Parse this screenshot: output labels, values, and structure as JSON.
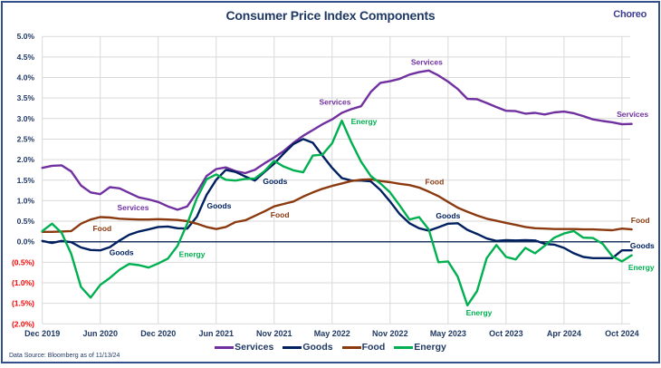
{
  "brand": {
    "logo_text": "Choreo"
  },
  "footer": {
    "source": "Data Source: Bloomberg as of 11/13/24"
  },
  "colors": {
    "title": "#1f3864",
    "positive_tick": "#1f3864",
    "negative_tick": "#ff0000",
    "zero_line": "#1f3864",
    "grid": "#d9d9d9"
  },
  "chart_data": {
    "type": "line",
    "title": "Consumer Price  Index Components",
    "xlabel": "",
    "ylabel": "",
    "ylim": [
      -2.0,
      5.0
    ],
    "grid": true,
    "legend_position": "bottom",
    "y_ticks": [
      {
        "value": 5.0,
        "label": "5.0%"
      },
      {
        "value": 4.5,
        "label": "4.5%"
      },
      {
        "value": 4.0,
        "label": "4.0%"
      },
      {
        "value": 3.5,
        "label": "3.5%"
      },
      {
        "value": 3.0,
        "label": "3.0%"
      },
      {
        "value": 2.5,
        "label": "2.5%"
      },
      {
        "value": 2.0,
        "label": "2.0%"
      },
      {
        "value": 1.5,
        "label": "1.5%"
      },
      {
        "value": 1.0,
        "label": "1.0%"
      },
      {
        "value": 0.5,
        "label": "0.5%"
      },
      {
        "value": 0.0,
        "label": "0.0%"
      },
      {
        "value": -0.5,
        "label": "(0.5%)"
      },
      {
        "value": -1.0,
        "label": "(1.0%)"
      },
      {
        "value": -1.5,
        "label": "(1.5%)"
      },
      {
        "value": -2.0,
        "label": "(2.0%)"
      }
    ],
    "x_ticks": [
      {
        "index": 0,
        "label": "Dec 2019"
      },
      {
        "index": 6,
        "label": "Jun 2020"
      },
      {
        "index": 12,
        "label": "Dec 2020"
      },
      {
        "index": 18,
        "label": "Jun 2021"
      },
      {
        "index": 24,
        "label": "Nov 2021"
      },
      {
        "index": 30,
        "label": "May 2022"
      },
      {
        "index": 36,
        "label": "Nov 2022"
      },
      {
        "index": 42,
        "label": "May 2023"
      },
      {
        "index": 48,
        "label": "Oct 2023"
      },
      {
        "index": 54,
        "label": "Apr 2024"
      },
      {
        "index": 60,
        "label": "Oct 2024"
      }
    ],
    "series": [
      {
        "name": "Services",
        "color": "#7030a0",
        "values": [
          1.8,
          1.85,
          1.86,
          1.71,
          1.37,
          1.2,
          1.16,
          1.33,
          1.3,
          1.19,
          1.08,
          1.03,
          0.97,
          0.86,
          0.78,
          0.86,
          1.2,
          1.6,
          1.77,
          1.81,
          1.72,
          1.67,
          1.75,
          1.91,
          2.05,
          2.21,
          2.41,
          2.58,
          2.72,
          2.86,
          2.98,
          3.14,
          3.23,
          3.3,
          3.65,
          3.87,
          3.91,
          3.97,
          4.07,
          4.13,
          4.17,
          4.05,
          3.9,
          3.72,
          3.48,
          3.47,
          3.38,
          3.28,
          3.19,
          3.18,
          3.12,
          3.14,
          3.1,
          3.15,
          3.17,
          3.13,
          3.06,
          2.98,
          2.94,
          2.91,
          2.86,
          2.87
        ]
      },
      {
        "name": "Goods",
        "color": "#002060",
        "values": [
          0.02,
          -0.03,
          0.02,
          -0.01,
          -0.14,
          -0.2,
          -0.21,
          -0.13,
          0.03,
          0.17,
          0.25,
          0.3,
          0.36,
          0.37,
          0.33,
          0.32,
          0.61,
          1.14,
          1.51,
          1.75,
          1.7,
          1.59,
          1.49,
          1.7,
          1.9,
          2.15,
          2.38,
          2.5,
          2.41,
          2.1,
          1.8,
          1.55,
          1.49,
          1.49,
          1.47,
          1.26,
          0.98,
          0.67,
          0.45,
          0.33,
          0.27,
          0.35,
          0.44,
          0.45,
          0.29,
          0.19,
          0.08,
          0.02,
          0.04,
          0.03,
          0.04,
          0.03,
          -0.05,
          -0.07,
          -0.15,
          -0.28,
          -0.37,
          -0.4,
          -0.4,
          -0.4,
          -0.21,
          -0.21
        ]
      },
      {
        "name": "Food",
        "color": "#8b3a10",
        "values": [
          0.24,
          0.24,
          0.25,
          0.26,
          0.44,
          0.54,
          0.6,
          0.59,
          0.56,
          0.55,
          0.54,
          0.54,
          0.55,
          0.54,
          0.53,
          0.5,
          0.44,
          0.36,
          0.31,
          0.36,
          0.48,
          0.52,
          0.63,
          0.74,
          0.86,
          0.92,
          0.98,
          1.1,
          1.2,
          1.29,
          1.36,
          1.42,
          1.48,
          1.51,
          1.52,
          1.48,
          1.45,
          1.41,
          1.38,
          1.32,
          1.22,
          1.11,
          0.97,
          0.83,
          0.73,
          0.64,
          0.56,
          0.51,
          0.46,
          0.41,
          0.36,
          0.33,
          0.32,
          0.31,
          0.31,
          0.31,
          0.3,
          0.3,
          0.29,
          0.28,
          0.32,
          0.3
        ]
      },
      {
        "name": "Energy",
        "color": "#00b050",
        "values": [
          0.26,
          0.44,
          0.22,
          -0.3,
          -1.1,
          -1.36,
          -1.05,
          -0.88,
          -0.68,
          -0.54,
          -0.57,
          -0.63,
          -0.53,
          -0.41,
          -0.1,
          0.44,
          1.06,
          1.52,
          1.64,
          1.51,
          1.49,
          1.53,
          1.54,
          1.72,
          1.97,
          1.83,
          1.74,
          1.69,
          2.1,
          2.12,
          2.4,
          2.95,
          2.42,
          1.95,
          1.6,
          1.42,
          1.2,
          0.88,
          0.54,
          0.6,
          0.3,
          -0.5,
          -0.48,
          -0.85,
          -1.55,
          -1.2,
          -0.4,
          -0.08,
          -0.37,
          -0.43,
          -0.15,
          -0.28,
          -0.1,
          0.1,
          0.2,
          0.26,
          0.1,
          0.09,
          -0.05,
          -0.35,
          -0.48,
          -0.33
        ]
      }
    ],
    "annotations": [
      {
        "text": "Services",
        "series": 0,
        "x_index": 9.4,
        "y_value": 0.83
      },
      {
        "text": "Food",
        "series": 2,
        "x_index": 6.2,
        "y_value": 0.32
      },
      {
        "text": "Goods",
        "series": 1,
        "x_index": 8.2,
        "y_value": -0.26
      },
      {
        "text": "Energy",
        "series": 3,
        "x_index": 15.5,
        "y_value": -0.31
      },
      {
        "text": "Goods",
        "series": 1,
        "x_index": 18.3,
        "y_value": 0.88
      },
      {
        "text": "Goods",
        "series": 1,
        "x_index": 24.1,
        "y_value": 1.47
      },
      {
        "text": "Food",
        "series": 2,
        "x_index": 24.6,
        "y_value": 0.66
      },
      {
        "text": "Services",
        "series": 0,
        "x_index": 30.3,
        "y_value": 3.4
      },
      {
        "text": "Energy",
        "series": 3,
        "x_index": 33.3,
        "y_value": 2.93
      },
      {
        "text": "Services",
        "series": 0,
        "x_index": 39.8,
        "y_value": 4.38
      },
      {
        "text": "Food",
        "series": 2,
        "x_index": 40.6,
        "y_value": 1.46
      },
      {
        "text": "Goods",
        "series": 1,
        "x_index": 42.0,
        "y_value": 0.63
      },
      {
        "text": "Energy",
        "series": 3,
        "x_index": 45.2,
        "y_value": -1.73
      },
      {
        "text": "Services",
        "series": 0,
        "x_index": 61.1,
        "y_value": 3.11
      },
      {
        "text": "Food",
        "series": 2,
        "x_index": 61.9,
        "y_value": 0.52
      },
      {
        "text": "Goods",
        "series": 1,
        "x_index": 62.1,
        "y_value": -0.09
      },
      {
        "text": "Energy",
        "series": 3,
        "x_index": 62.0,
        "y_value": -0.62
      }
    ]
  }
}
